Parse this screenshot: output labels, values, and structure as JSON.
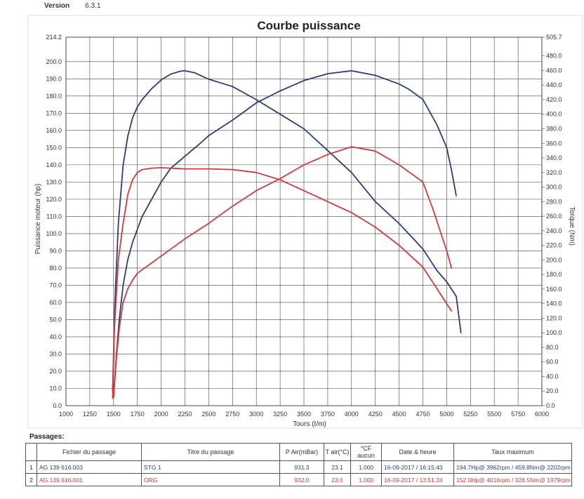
{
  "version": {
    "label": "Version",
    "value": "6.3.1"
  },
  "passages_label": "Passages:",
  "table": {
    "headers": [
      "",
      "Fichier du passage",
      "Titre du passage",
      "P Air(mBar)",
      "T air(°C)",
      "°CF aucun",
      "Date & heure",
      "Taux maximum"
    ],
    "rows": [
      {
        "index": "1",
        "file": "AG 139 616.003",
        "title": "STG 1",
        "pair": "931.3",
        "tair": "23.1",
        "cf": "1.000",
        "datetime": "16-09-2017 / 16:15:43",
        "max": "194.7Hp@ 3962rpm / 459.8Nm@ 2202rpm",
        "color": "#2c3e7a"
      },
      {
        "index": "2",
        "file": "AG 139 616.001",
        "title": "ORG",
        "pair": "932.0",
        "tair": "23.6",
        "cf": "1.000",
        "datetime": "16-09-2017 / 13:51:24",
        "max": "152.0Hp@ 4016rpm / 326.5Nm@ 1979rpm",
        "color": "#d23a3a"
      }
    ]
  },
  "chart_data": {
    "type": "line",
    "title": "Courbe puissance",
    "xlabel": "Tours (t/m)",
    "ylabel_left": "Puissance moteur (hp)",
    "ylabel_right": "Torque (Nm)",
    "xlim": [
      1000,
      6000
    ],
    "ylim_left": [
      0,
      214.2
    ],
    "ylim_right": [
      0,
      505.7
    ],
    "grid": true,
    "x_ticks": [
      "1000",
      "1250",
      "1500",
      "1750",
      "2000",
      "2250",
      "2500",
      "2750",
      "3000",
      "3250",
      "3500",
      "3750",
      "4000",
      "4250",
      "4500",
      "4750",
      "5000",
      "5250",
      "5500",
      "5750",
      "6000"
    ],
    "y_left_ticks": [
      "0.0",
      "10.0",
      "20.0",
      "30.0",
      "40.0",
      "50.0",
      "60.0",
      "70.0",
      "80.0",
      "90.0",
      "100.0",
      "110.0",
      "120.0",
      "130.0",
      "140.0",
      "150.0",
      "160.0",
      "170.0",
      "180.0",
      "190.0",
      "200.0",
      "214.2"
    ],
    "y_right_ticks": [
      "0.0",
      "20.0",
      "40.0",
      "60.0",
      "80.0",
      "100.0",
      "120.0",
      "140.0",
      "160.0",
      "180.0",
      "200.0",
      "220.0",
      "240.0",
      "260.0",
      "280.0",
      "300.0",
      "320.0",
      "340.0",
      "360.0",
      "380.0",
      "400.0",
      "420.0",
      "440.0",
      "460.0",
      "480.0",
      "505.7"
    ],
    "series": [
      {
        "axis": "left",
        "color": "#2c3e7a",
        "x": [
          1500,
          1530,
          1560,
          1600,
          1650,
          1700,
          1800,
          1900,
          2000,
          2100,
          2250,
          2400,
          2500,
          2750,
          3000,
          3250,
          3500,
          3750,
          4000,
          4250,
          4500,
          4600,
          4750,
          4900,
          5000,
          5050,
          5100
        ],
        "y": [
          5,
          30,
          50,
          70,
          85,
          95,
          110,
          120,
          130,
          138,
          145,
          152,
          157,
          166,
          176,
          183,
          189,
          193,
          194.7,
          192,
          187,
          184,
          178,
          163,
          150,
          137,
          122
        ]
      },
      {
        "axis": "right",
        "color": "#2c3e7a",
        "x": [
          1490,
          1500,
          1510,
          1550,
          1600,
          1650,
          1700,
          1750,
          1800,
          1900,
          2000,
          2100,
          2200,
          2250,
          2350,
          2500,
          2750,
          3000,
          3250,
          3500,
          3750,
          4000,
          4250,
          4500,
          4750,
          4900,
          5000,
          5100,
          5150
        ],
        "y": [
          20,
          70,
          130,
          250,
          330,
          370,
          395,
          410,
          420,
          435,
          447,
          455,
          459,
          459.8,
          457,
          448,
          438,
          420,
          400,
          380,
          350,
          320,
          280,
          250,
          215,
          185,
          170,
          150,
          100
        ]
      },
      {
        "axis": "left",
        "color": "#d23a3a",
        "x": [
          1500,
          1530,
          1560,
          1600,
          1650,
          1700,
          1750,
          2000,
          2250,
          2500,
          2750,
          3000,
          3250,
          3500,
          3750,
          4000,
          4250,
          4500,
          4750,
          4850,
          5000,
          5050
        ],
        "y": [
          5,
          28,
          45,
          60,
          68,
          73,
          77,
          87,
          97,
          106,
          116,
          125,
          132,
          140,
          146,
          150.5,
          148,
          140,
          130,
          115,
          90,
          80
        ]
      },
      {
        "axis": "right",
        "color": "#d23a3a",
        "x": [
          1490,
          1500,
          1510,
          1550,
          1600,
          1650,
          1700,
          1750,
          1800,
          1850,
          1900,
          2000,
          2250,
          2500,
          2750,
          3000,
          3250,
          3500,
          3750,
          4000,
          4250,
          4500,
          4750,
          4850,
          5000,
          5050
        ],
        "y": [
          10,
          60,
          110,
          200,
          250,
          290,
          310,
          320,
          324,
          325,
          326,
          326.5,
          325,
          325,
          324,
          320,
          310,
          295,
          280,
          265,
          245,
          220,
          190,
          170,
          140,
          130
        ]
      }
    ]
  }
}
